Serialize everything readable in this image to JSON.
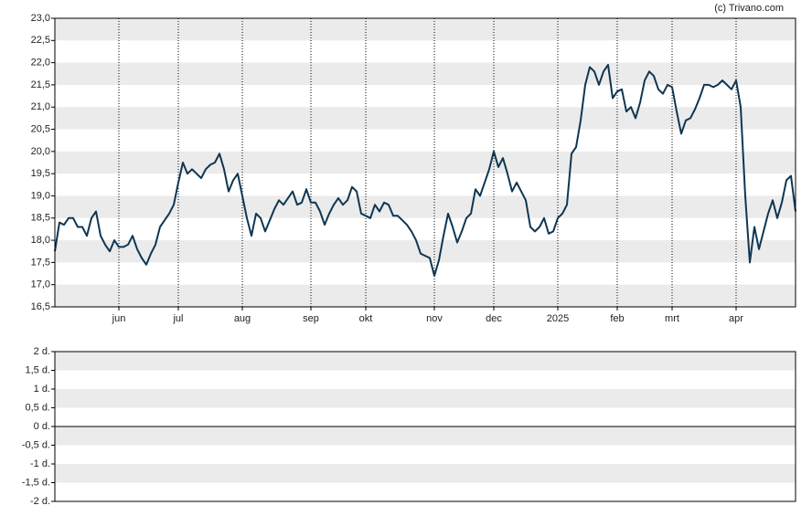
{
  "watermark": "(c) Trivano.com",
  "chart_data": [
    {
      "type": "line",
      "categories": [
        null,
        null,
        null,
        null,
        null,
        null,
        null,
        null,
        null,
        null,
        null,
        null,
        null,
        null,
        "jun",
        null,
        null,
        null,
        null,
        null,
        null,
        null,
        null,
        null,
        null,
        null,
        null,
        "jul",
        null,
        null,
        null,
        null,
        null,
        null,
        null,
        null,
        null,
        null,
        null,
        null,
        null,
        "aug",
        null,
        null,
        null,
        null,
        null,
        null,
        null,
        null,
        null,
        null,
        null,
        null,
        null,
        null,
        "sep",
        null,
        null,
        null,
        null,
        null,
        null,
        null,
        null,
        null,
        null,
        null,
        "okt",
        null,
        null,
        null,
        null,
        null,
        null,
        null,
        null,
        null,
        null,
        null,
        null,
        null,
        null,
        "nov",
        null,
        null,
        null,
        null,
        null,
        null,
        null,
        null,
        null,
        null,
        null,
        null,
        "dec",
        null,
        null,
        null,
        null,
        null,
        null,
        null,
        null,
        null,
        null,
        null,
        null,
        null,
        "2025",
        null,
        null,
        null,
        null,
        null,
        null,
        null,
        null,
        null,
        null,
        null,
        null,
        "feb",
        null,
        null,
        null,
        null,
        null,
        null,
        null,
        null,
        null,
        null,
        null,
        "mrt",
        null,
        null,
        null,
        null,
        null,
        null,
        null,
        null,
        null,
        null,
        null,
        null,
        null,
        "apr",
        null,
        null,
        null,
        null,
        null,
        null,
        null,
        null,
        null,
        null,
        null,
        null,
        null
      ],
      "series": [
        {
          "color": "#0f3652",
          "values": [
            17.75,
            18.4,
            18.35,
            18.5,
            18.5,
            18.3,
            18.3,
            18.1,
            18.5,
            18.65,
            18.1,
            17.9,
            17.75,
            18.0,
            17.85,
            17.85,
            17.9,
            18.1,
            17.8,
            17.6,
            17.45,
            17.7,
            17.9,
            18.3,
            18.45,
            18.6,
            18.8,
            19.3,
            19.75,
            19.5,
            19.6,
            19.5,
            19.4,
            19.6,
            19.7,
            19.75,
            19.95,
            19.6,
            19.1,
            19.35,
            19.5,
            19.0,
            18.5,
            18.1,
            18.6,
            18.5,
            18.2,
            18.45,
            18.7,
            18.9,
            18.8,
            18.95,
            19.1,
            18.8,
            18.85,
            19.15,
            18.85,
            18.85,
            18.65,
            18.35,
            18.6,
            18.8,
            18.95,
            18.8,
            18.9,
            19.2,
            19.1,
            18.6,
            18.55,
            18.5,
            18.8,
            18.65,
            18.85,
            18.8,
            18.55,
            18.55,
            18.45,
            18.35,
            18.2,
            18.0,
            17.7,
            17.65,
            17.6,
            17.2,
            17.55,
            18.1,
            18.6,
            18.3,
            17.95,
            18.2,
            18.5,
            18.6,
            19.15,
            19.0,
            19.3,
            19.6,
            20.0,
            19.65,
            19.85,
            19.5,
            19.1,
            19.3,
            19.1,
            18.9,
            18.3,
            18.2,
            18.3,
            18.5,
            18.15,
            18.2,
            18.5,
            18.6,
            18.8,
            19.95,
            20.1,
            20.7,
            21.5,
            21.9,
            21.8,
            21.5,
            21.8,
            21.95,
            21.2,
            21.35,
            21.4,
            20.9,
            21.0,
            20.75,
            21.1,
            21.6,
            21.8,
            21.7,
            21.4,
            21.3,
            21.5,
            21.45,
            20.9,
            20.4,
            20.7,
            20.75,
            20.95,
            21.2,
            21.5,
            21.5,
            21.45,
            21.5,
            21.6,
            21.5,
            21.4,
            21.6,
            21.0,
            19.0,
            17.5,
            18.3,
            17.8,
            18.2,
            18.6,
            18.9,
            18.5,
            18.85,
            19.35,
            19.45,
            18.65
          ]
        }
      ],
      "ylim": [
        16.5,
        23
      ],
      "yticks": [
        {
          "value": 16.5,
          "label": "16,5"
        },
        {
          "value": 17,
          "label": "17,0"
        },
        {
          "value": 17.5,
          "label": "17,5"
        },
        {
          "value": 18,
          "label": "18,0"
        },
        {
          "value": 18.5,
          "label": "18,5"
        },
        {
          "value": 19,
          "label": "19,0"
        },
        {
          "value": 19.5,
          "label": "19,5"
        },
        {
          "value": 20,
          "label": "20,0"
        },
        {
          "value": 20.5,
          "label": "20,5"
        },
        {
          "value": 21,
          "label": "21,0"
        },
        {
          "value": 21.5,
          "label": "21,5"
        },
        {
          "value": 22,
          "label": "22,0"
        },
        {
          "value": 22.5,
          "label": "22,5"
        },
        {
          "value": 23,
          "label": "23,0"
        }
      ],
      "grid": "bands",
      "vgrid": "dotted"
    },
    {
      "type": "line",
      "ylim": [
        -2,
        2
      ],
      "yticks": [
        {
          "value": -2,
          "label": "-2 d."
        },
        {
          "value": -1.5,
          "label": "-1,5 d."
        },
        {
          "value": -1,
          "label": "-1 d."
        },
        {
          "value": -0.5,
          "label": "-0,5 d."
        },
        {
          "value": 0,
          "label": "0 d."
        },
        {
          "value": 0.5,
          "label": "0,5 d."
        },
        {
          "value": 1,
          "label": "1 d."
        },
        {
          "value": 1.5,
          "label": "1,5 d."
        },
        {
          "value": 2,
          "label": "2 d."
        }
      ],
      "grid": "bands"
    }
  ]
}
